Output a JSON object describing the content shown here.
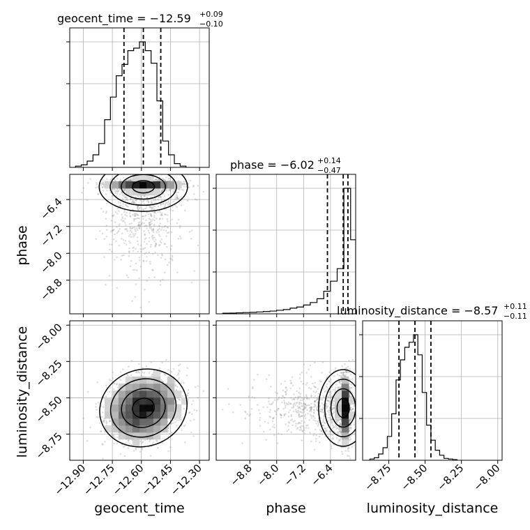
{
  "chart_data": {
    "type": "corner",
    "parameters": [
      "geocent_time",
      "phase",
      "luminosity_distance"
    ],
    "axis_labels": {
      "geocent_time": "geocent_time",
      "phase": "phase",
      "luminosity_distance": "luminosity_distance"
    },
    "ranges": {
      "geocent_time": [
        -12.97,
        -12.25
      ],
      "phase": [
        -9.8,
        -5.65
      ],
      "luminosity_distance": [
        -8.93,
        -7.97
      ]
    },
    "ticks": {
      "geocent_time": [
        -12.9,
        -12.75,
        -12.6,
        -12.45,
        -12.3
      ],
      "phase": [
        -8.8,
        -8.0,
        -7.2,
        -6.4
      ],
      "luminosity_distance": [
        -8.75,
        -8.5,
        -8.25,
        -8.0
      ]
    },
    "tick_labels": {
      "geocent_time": [
        "−12.90",
        "−12.75",
        "−12.60",
        "−12.45",
        "−12.30"
      ],
      "phase": [
        "−8.8",
        "−8.0",
        "−7.2",
        "−6.4"
      ],
      "luminosity_distance": [
        "−8.75",
        "−8.50",
        "−8.25",
        "−8.00"
      ]
    },
    "titles": {
      "geocent_time": {
        "prefix": "geocent_time = ",
        "median": "−12.59",
        "plus": "+0.09",
        "minus": "−0.10"
      },
      "phase": {
        "prefix": "phase = ",
        "median": "−6.02",
        "plus": "+0.14",
        "minus": "−0.47"
      },
      "luminosity_distance": {
        "prefix": "luminosity_distance = ",
        "median": "−8.57",
        "plus": "+0.11",
        "minus": "−0.11"
      }
    },
    "quantiles": {
      "geocent_time": [
        -12.69,
        -12.59,
        -12.5
      ],
      "phase": [
        -6.49,
        -6.02,
        -5.88
      ],
      "luminosity_distance": [
        -8.68,
        -8.57,
        -8.46
      ]
    },
    "histograms": {
      "geocent_time": {
        "edges": [
          -12.94,
          -12.91,
          -12.88,
          -12.85,
          -12.82,
          -12.79,
          -12.76,
          -12.73,
          -12.7,
          -12.67,
          -12.64,
          -12.61,
          -12.58,
          -12.55,
          -12.52,
          -12.49,
          -12.46,
          -12.43,
          -12.4,
          -12.37
        ],
        "counts": [
          1,
          2,
          5,
          10,
          19,
          38,
          56,
          73,
          82,
          93,
          95,
          100,
          93,
          83,
          53,
          21,
          10,
          3,
          1
        ]
      },
      "phase": {
        "edges": [
          -9.6,
          -9.4,
          -9.2,
          -9.0,
          -8.8,
          -8.6,
          -8.4,
          -8.2,
          -8.0,
          -7.8,
          -7.6,
          -7.4,
          -7.2,
          -7.0,
          -6.8,
          -6.6,
          -6.4,
          -6.2,
          -6.0,
          -5.8,
          -5.65
        ],
        "counts": [
          0.5,
          0.6,
          0.8,
          1.0,
          1.2,
          1.5,
          1.8,
          2.2,
          2.8,
          3.4,
          4.5,
          5.4,
          7.0,
          9.0,
          12.0,
          18.0,
          26.0,
          36.0,
          100.0,
          59.0
        ]
      },
      "luminosity_distance": {
        "edges": [
          -8.88,
          -8.85,
          -8.82,
          -8.79,
          -8.76,
          -8.73,
          -8.7,
          -8.67,
          -8.64,
          -8.61,
          -8.58,
          -8.55,
          -8.52,
          -8.49,
          -8.46,
          -8.43,
          -8.4,
          -8.37,
          -8.34,
          -8.31,
          -8.28
        ],
        "counts": [
          1,
          2,
          5,
          10,
          19,
          37,
          64,
          80,
          90,
          94,
          100,
          84,
          54,
          28,
          16,
          8,
          4,
          1.5,
          1,
          0.5
        ]
      }
    },
    "grid": true,
    "plot_density": true,
    "plot_datapoints": true,
    "contour_color": "#000000",
    "point_color": "#8c8c8c"
  }
}
